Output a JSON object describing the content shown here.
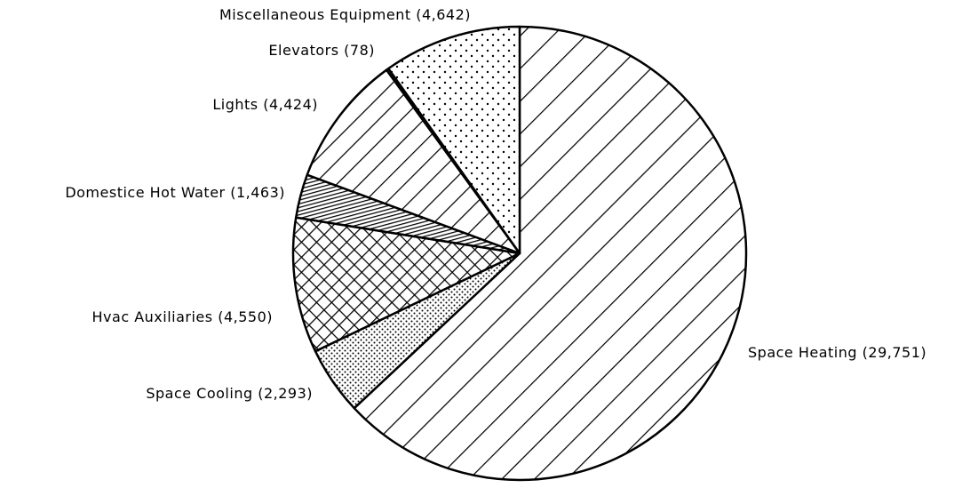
{
  "chart_data": {
    "type": "pie",
    "categories": [
      "Space Heating",
      "Space Cooling",
      "Hvac Auxiliaries",
      "Domestice Hot Water",
      "Lights",
      "Elevators",
      "Miscellaneous Equipment"
    ],
    "values": [
      29751,
      2293,
      4550,
      1463,
      4424,
      78,
      4642
    ],
    "value_labels": [
      "(29,751)",
      "(2,293)",
      "(4,550)",
      "(1,463)",
      "(4,424)",
      "(78)",
      "(4,642)"
    ],
    "patterns": [
      "wide-diagonal",
      "dense-dots",
      "crosshatch",
      "dense-lines",
      "diagonal",
      "diagonal",
      "sparse-dots"
    ],
    "start_angle": 0,
    "direction": "clockwise"
  }
}
